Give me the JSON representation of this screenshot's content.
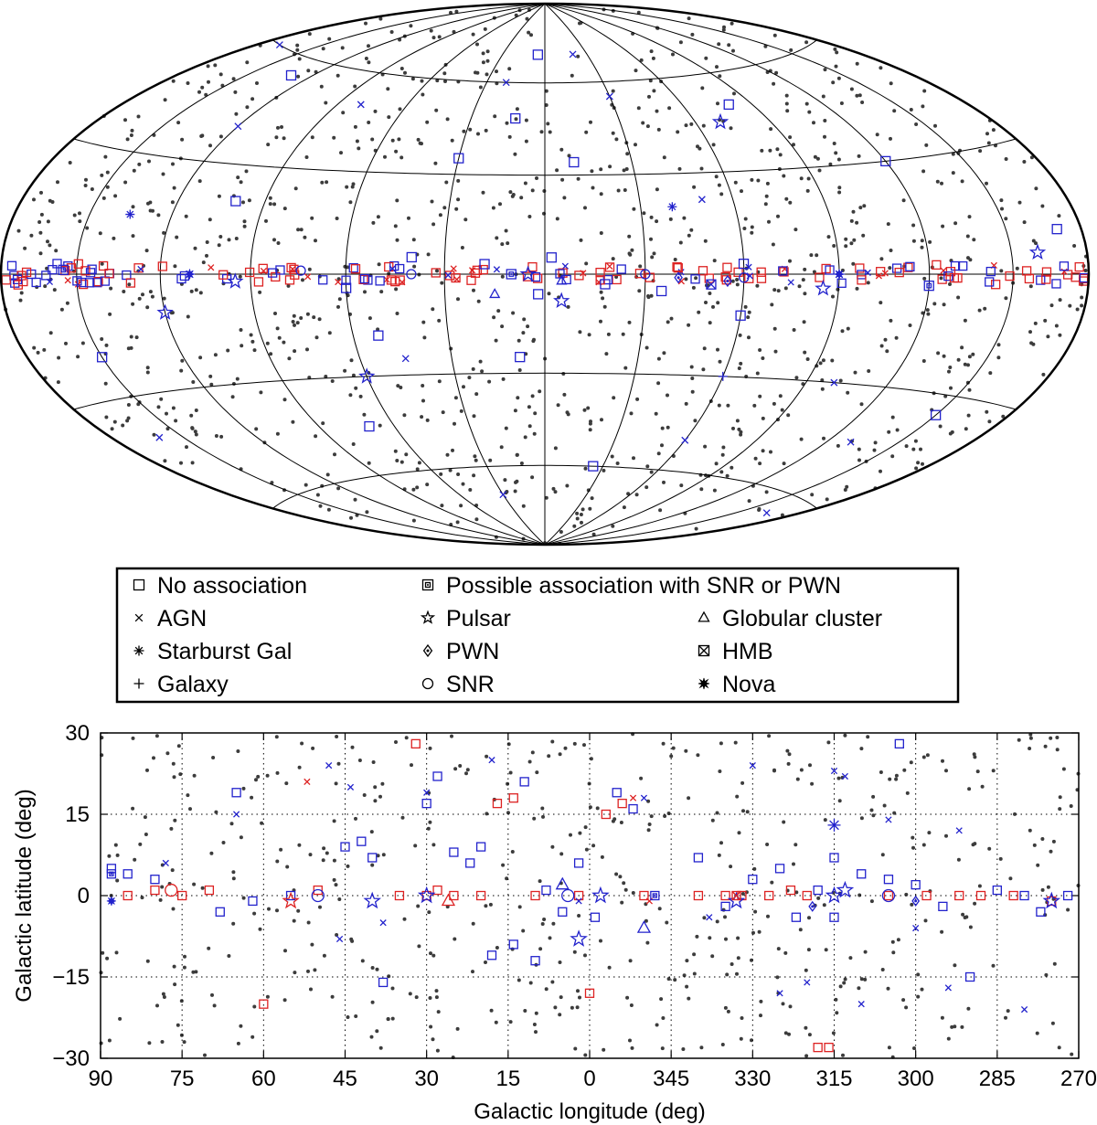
{
  "legend": {
    "entries": [
      {
        "key": "none",
        "label": "No association",
        "symbol": "square"
      },
      {
        "key": "agn",
        "label": "AGN",
        "symbol": "x"
      },
      {
        "key": "starburst",
        "label": "Starburst Gal",
        "symbol": "asterisk"
      },
      {
        "key": "galaxy",
        "label": "Galaxy",
        "symbol": "plus"
      },
      {
        "key": "possible",
        "label": "Possible association with SNR or PWN",
        "symbol": "dotted-square"
      },
      {
        "key": "pulsar",
        "label": "Pulsar",
        "symbol": "star"
      },
      {
        "key": "pwn",
        "label": "PWN",
        "symbol": "dotted-diamond"
      },
      {
        "key": "snr",
        "label": "SNR",
        "symbol": "circle"
      },
      {
        "key": "globular",
        "label": "Globular cluster",
        "symbol": "triangle"
      },
      {
        "key": "hmb",
        "label": "HMB",
        "symbol": "crossed-square"
      },
      {
        "key": "nova",
        "label": "Nova",
        "symbol": "burst"
      }
    ]
  },
  "colors": {
    "unassociated_dots": "#3c3c3c",
    "identified": "#2222cc",
    "flagged": "#dd2222",
    "grid": "#000000"
  },
  "chart_data": [
    {
      "type": "scatter",
      "projection": "Hammer-Aitoff, Galactic coordinates, centred on l = 0",
      "graticule": {
        "longitude_step_deg": 30,
        "latitude_lines_deg": [
          -60,
          -30,
          0,
          30,
          60
        ]
      },
      "series": [
        {
          "key": "none",
          "points": [
            [
              5,
              70
            ],
            [
              12,
              48
            ],
            [
              30,
              35
            ],
            [
              -10,
              34
            ],
            [
              40,
              5
            ],
            [
              -35,
              -5
            ],
            [
              52,
              -18
            ],
            [
              -60,
              -12
            ],
            [
              100,
              20
            ],
            [
              -120,
              30
            ],
            [
              150,
              -20
            ],
            [
              -150,
              -35
            ],
            [
              8,
              -25
            ],
            [
              -25,
              -60
            ],
            [
              70,
              -45
            ],
            [
              -80,
              50
            ],
            [
              130,
              55
            ],
            [
              -170,
              10
            ],
            [
              2,
              -6
            ],
            [
              -2,
              5
            ],
            [
              18,
              3
            ],
            [
              -18,
              -3
            ],
            [
              60,
              -4
            ],
            [
              -60,
              3
            ]
          ]
        },
        {
          "key": "agn",
          "points": [
            [
              20,
              60
            ],
            [
              -30,
              55
            ],
            [
              120,
              40
            ],
            [
              -130,
              -45
            ],
            [
              160,
              -40
            ],
            [
              -100,
              -30
            ],
            [
              80,
              50
            ],
            [
              -60,
              -50
            ],
            [
              30,
              -70
            ],
            [
              -20,
              70
            ],
            [
              170,
              60
            ],
            [
              -165,
              -65
            ],
            [
              45,
              -25
            ],
            [
              -50,
              22
            ]
          ]
        },
        {
          "key": "starburst",
          "points": [
            [
              -40,
              20
            ],
            [
              135,
              15
            ]
          ]
        },
        {
          "key": "galaxy",
          "points": [
            [
              -60,
              -30
            ]
          ]
        },
        {
          "key": "possible",
          "points": [
            [
              155,
              1
            ],
            [
              -120,
              -3
            ],
            [
              10,
              0
            ]
          ]
        },
        {
          "key": "pulsar",
          "points": [
            [
              60,
              -30
            ],
            [
              -70,
              45
            ],
            [
              120,
              -10
            ],
            [
              -160,
              5
            ],
            [
              -85,
              -4
            ],
            [
              95,
              -2
            ],
            [
              5,
              0
            ],
            [
              -5,
              -8
            ]
          ]
        },
        {
          "key": "pwn",
          "points": [
            [
              -40,
              -1
            ],
            [
              -55,
              -2
            ]
          ]
        },
        {
          "key": "snr",
          "points": [
            [
              -30,
              0
            ],
            [
              40,
              0
            ],
            [
              -60,
              -1
            ],
            [
              74,
              1
            ]
          ]
        },
        {
          "key": "globular",
          "points": [
            [
              -5,
              -2
            ],
            [
              15,
              -6
            ]
          ]
        },
        {
          "key": "hmb",
          "points": [
            [
              -50,
              -3
            ]
          ]
        },
        {
          "key": "nova",
          "points": [
            [
              110,
              0
            ],
            [
              -90,
              0
            ]
          ]
        }
      ]
    },
    {
      "type": "scatter",
      "xlabel": "Galactic longitude (deg)",
      "ylabel": "Galactic latitude (deg)",
      "xlim": [
        90,
        -90
      ],
      "ylim": [
        -30,
        30
      ],
      "x_ticks": [
        90,
        75,
        60,
        45,
        30,
        15,
        0,
        345,
        330,
        315,
        300,
        285,
        270
      ],
      "y_ticks": [
        30,
        15,
        0,
        -15,
        -30
      ],
      "y_tick_labels": [
        "30",
        "15",
        "0",
        "−15",
        "−30"
      ],
      "grid": "dotted",
      "series": [
        {
          "key": "none",
          "color": "blue",
          "points": [
            [
              88,
              5
            ],
            [
              85,
              4
            ],
            [
              80,
              3
            ],
            [
              68,
              -3
            ],
            [
              65,
              19
            ],
            [
              62,
              -1
            ],
            [
              55,
              0
            ],
            [
              45,
              9
            ],
            [
              42,
              10
            ],
            [
              40,
              7
            ],
            [
              38,
              -16
            ],
            [
              30,
              17
            ],
            [
              28,
              22
            ],
            [
              25,
              8
            ],
            [
              22,
              6
            ],
            [
              20,
              9
            ],
            [
              18,
              -11
            ],
            [
              14,
              -9
            ],
            [
              12,
              21
            ],
            [
              8,
              1
            ],
            [
              5,
              -3
            ],
            [
              2,
              6
            ],
            [
              -1,
              -4
            ],
            [
              -5,
              19
            ],
            [
              -8,
              16
            ],
            [
              -20,
              7
            ],
            [
              -25,
              -2
            ],
            [
              -30,
              3
            ],
            [
              -35,
              5
            ],
            [
              -38,
              -4
            ],
            [
              -42,
              1
            ],
            [
              -45,
              7
            ],
            [
              -50,
              4
            ],
            [
              -55,
              3
            ],
            [
              -57,
              28
            ],
            [
              -60,
              2
            ],
            [
              -65,
              -2
            ],
            [
              -70,
              -15
            ],
            [
              -75,
              1
            ],
            [
              -80,
              0
            ],
            [
              -83,
              -3
            ],
            [
              -88,
              0
            ],
            [
              -45,
              -4
            ],
            [
              10,
              -12
            ]
          ]
        },
        {
          "key": "none",
          "color": "red",
          "points": [
            [
              85,
              0
            ],
            [
              80,
              1
            ],
            [
              75,
              0
            ],
            [
              70,
              1
            ],
            [
              50,
              1
            ],
            [
              35,
              0
            ],
            [
              32,
              28
            ],
            [
              30,
              0
            ],
            [
              28,
              1
            ],
            [
              25,
              0
            ],
            [
              20,
              0
            ],
            [
              17,
              17
            ],
            [
              14,
              18
            ],
            [
              10,
              0
            ],
            [
              2,
              0
            ],
            [
              0,
              -18
            ],
            [
              -3,
              15
            ],
            [
              -6,
              17
            ],
            [
              -10,
              0
            ],
            [
              -20,
              0
            ],
            [
              -25,
              0
            ],
            [
              -28,
              0
            ],
            [
              -33,
              0
            ],
            [
              -37,
              1
            ],
            [
              -40,
              0
            ],
            [
              -42,
              -28
            ],
            [
              -44,
              -28
            ],
            [
              -55,
              0
            ],
            [
              -62,
              0
            ],
            [
              -68,
              0
            ],
            [
              -72,
              0
            ],
            [
              -78,
              0
            ],
            [
              -85,
              -1
            ],
            [
              60,
              -20
            ]
          ]
        },
        {
          "key": "agn",
          "color": "blue",
          "points": [
            [
              78,
              6
            ],
            [
              65,
              15
            ],
            [
              48,
              24
            ],
            [
              44,
              20
            ],
            [
              38,
              -5
            ],
            [
              30,
              19
            ],
            [
              18,
              25
            ],
            [
              -10,
              18
            ],
            [
              -22,
              -4
            ],
            [
              -30,
              24
            ],
            [
              -35,
              -18
            ],
            [
              -40,
              -16
            ],
            [
              -45,
              23
            ],
            [
              -47,
              22
            ],
            [
              -50,
              -20
            ],
            [
              -55,
              14
            ],
            [
              -60,
              -6
            ],
            [
              -66,
              -17
            ],
            [
              -68,
              12
            ],
            [
              -80,
              -21
            ],
            [
              46,
              -8
            ],
            [
              2,
              -1
            ]
          ]
        },
        {
          "key": "agn",
          "color": "red",
          "points": [
            [
              52,
              21
            ],
            [
              -8,
              18
            ],
            [
              -11,
              -1
            ]
          ]
        },
        {
          "key": "starburst",
          "color": "blue",
          "points": [
            [
              -45,
              13
            ]
          ]
        },
        {
          "key": "possible",
          "color": "blue",
          "points": [
            [
              88,
              4
            ],
            [
              -12,
              0
            ]
          ]
        },
        {
          "key": "pulsar",
          "color": "blue",
          "points": [
            [
              40,
              -1
            ],
            [
              30,
              0
            ],
            [
              2,
              -8
            ],
            [
              -2,
              0
            ],
            [
              -27,
              -1
            ],
            [
              -45,
              0
            ],
            [
              -47,
              1
            ],
            [
              -85,
              -1
            ]
          ]
        },
        {
          "key": "pulsar",
          "color": "red",
          "points": [
            [
              55,
              -1
            ]
          ]
        },
        {
          "key": "pwn",
          "color": "blue",
          "points": [
            [
              -41,
              -2
            ],
            [
              -60,
              -1
            ]
          ]
        },
        {
          "key": "snr",
          "color": "blue",
          "points": [
            [
              50,
              0
            ],
            [
              4,
              0
            ],
            [
              -55,
              0
            ]
          ]
        },
        {
          "key": "snr",
          "color": "red",
          "points": [
            [
              77,
              1
            ]
          ]
        },
        {
          "key": "globular",
          "color": "blue",
          "points": [
            [
              5,
              2
            ],
            [
              -10,
              -6
            ]
          ]
        },
        {
          "key": "globular",
          "color": "red",
          "points": [
            [
              26,
              -1
            ]
          ]
        },
        {
          "key": "hmb",
          "color": "red",
          "points": [
            [
              -27,
              0
            ]
          ]
        },
        {
          "key": "nova",
          "color": "blue",
          "points": [
            [
              88,
              -1
            ]
          ]
        }
      ]
    }
  ]
}
